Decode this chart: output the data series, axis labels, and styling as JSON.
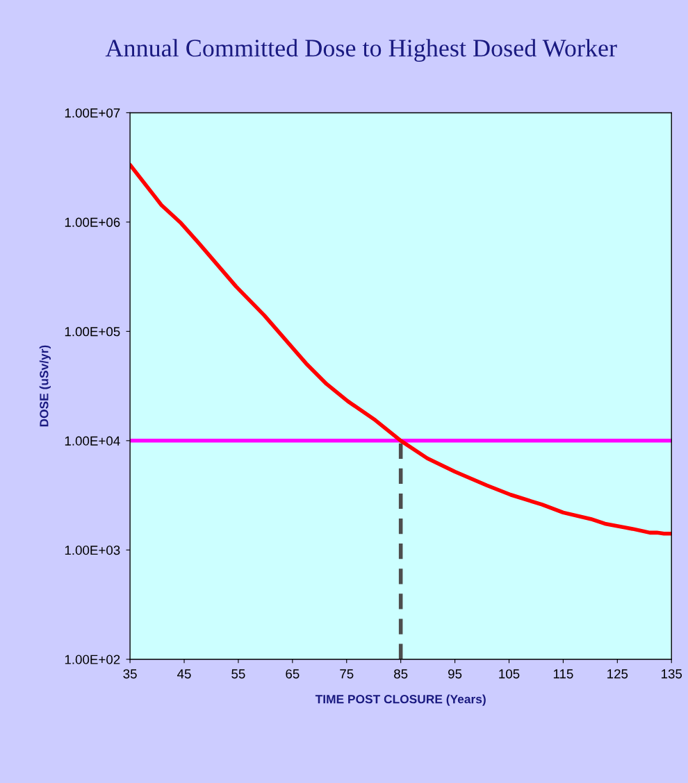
{
  "chart_data": {
    "type": "line",
    "title": "Annual Committed Dose to Highest Dosed Worker",
    "xlabel": "TIME POST CLOSURE (Years)",
    "ylabel": "DOSE (uSv/yr)",
    "log": "y",
    "grid": false,
    "legend": false,
    "marker": "none",
    "line_style": "solid",
    "xlim": [
      35,
      135
    ],
    "xticks": [
      35,
      45,
      55,
      65,
      75,
      85,
      95,
      105,
      115,
      125,
      135
    ],
    "ylim": [
      100,
      10000000
    ],
    "yticks": [
      {
        "value": 100,
        "label": "1.00E+02"
      },
      {
        "value": 1000,
        "label": "1.00E+03"
      },
      {
        "value": 10000,
        "label": "1.00E+04"
      },
      {
        "value": 100000,
        "label": "1.00E+05"
      },
      {
        "value": 1000000,
        "label": "1.00E+06"
      },
      {
        "value": 10000000,
        "label": "1.00E+07"
      }
    ],
    "series": [
      {
        "color": "#ff0000",
        "x": [
          35,
          39.5,
          40.8,
          44.4,
          47.6,
          54.6,
          59.8,
          67.5,
          71.3,
          75.2,
          80.3,
          85,
          89.9,
          95,
          100.9,
          105.3,
          111.1,
          115,
          120.1,
          122.7,
          127.8,
          131,
          132.3,
          133.6,
          135
        ],
        "values": [
          3340000,
          1730000,
          1430000,
          980000,
          650000,
          257000,
          140000,
          51000,
          33000,
          23000,
          15400,
          10000,
          6900,
          5200,
          3900,
          3200,
          2600,
          2200,
          1920,
          1740,
          1560,
          1440,
          1440,
          1410,
          1410
        ]
      }
    ],
    "ref_lines": [
      {
        "axis": "y",
        "value": 10000,
        "color": "#ff00ff",
        "line_style": "solid"
      },
      {
        "axis": "x",
        "value": 85,
        "color": "#4d4d4d",
        "line_style": "dashed"
      }
    ]
  }
}
